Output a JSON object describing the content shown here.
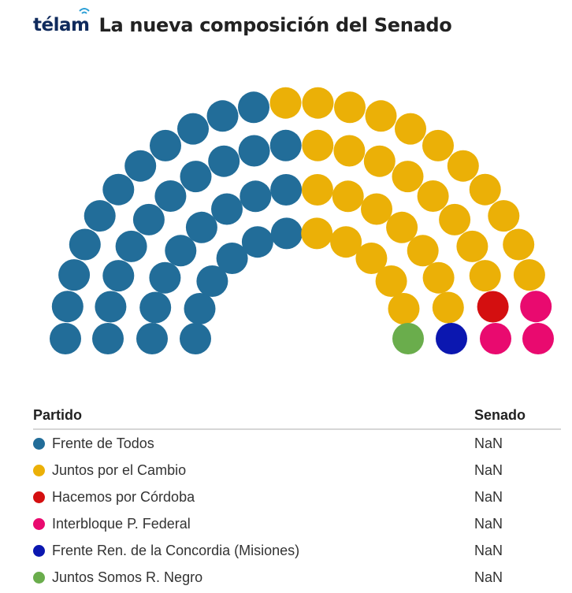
{
  "header": {
    "logo_text": "télam",
    "title": "La nueva composición del Senado"
  },
  "table": {
    "col_partido": "Partido",
    "col_senado": "Senado",
    "rows": [
      {
        "party": "Frente de Todos",
        "value": "NaN",
        "color": "#226d99"
      },
      {
        "party": "Juntos por el Cambio",
        "value": "NaN",
        "color": "#ebb007"
      },
      {
        "party": "Hacemos por Córdoba",
        "value": "NaN",
        "color": "#d40f10"
      },
      {
        "party": "Interbloque P. Federal",
        "value": "NaN",
        "color": "#e90a6f"
      },
      {
        "party": "Frente Ren. de la Concordia (Misiones)",
        "value": "NaN",
        "color": "#0b17b0"
      },
      {
        "party": "Juntos Somos R. Negro",
        "value": "NaN",
        "color": "#6aad4c"
      }
    ]
  },
  "chart_data": {
    "type": "parliament",
    "total_seats": 72,
    "series": [
      {
        "name": "Frente de Todos",
        "seats": 35,
        "color": "#226d99"
      },
      {
        "name": "Juntos por el Cambio",
        "seats": 31,
        "color": "#ebb007"
      },
      {
        "name": "Hacemos por Córdoba",
        "seats": 1,
        "color": "#d40f10"
      },
      {
        "name": "Interbloque P. Federal",
        "seats": 3,
        "color": "#e90a6f"
      },
      {
        "name": "Frente Ren. de la Concordia (Misiones)",
        "seats": 1,
        "color": "#0b17b0"
      },
      {
        "name": "Juntos Somos R. Negro",
        "seats": 1,
        "color": "#6aad4c"
      }
    ]
  }
}
